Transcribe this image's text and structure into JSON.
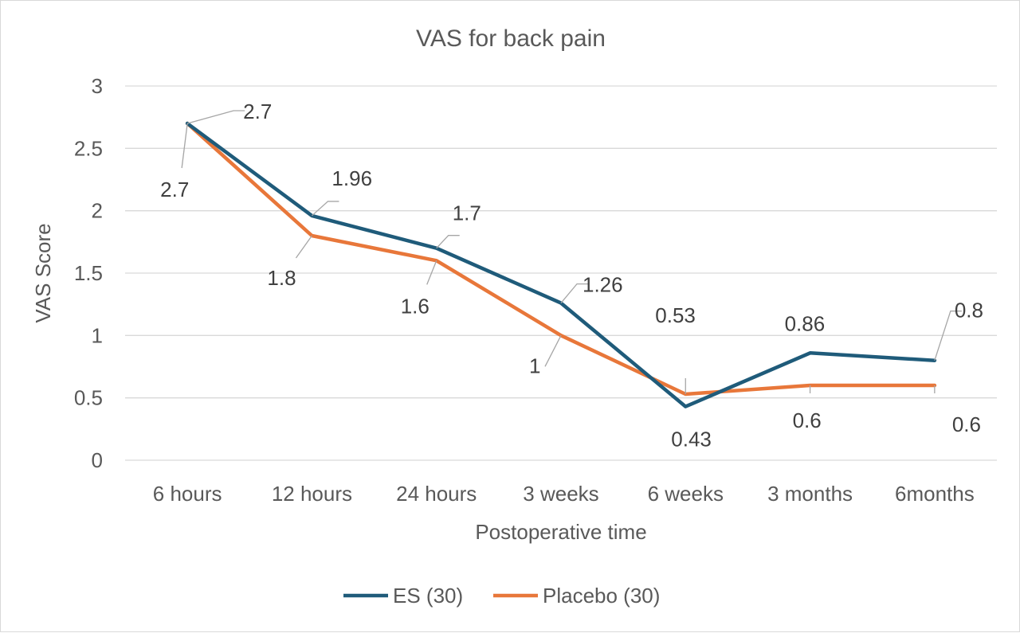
{
  "chart_data": {
    "type": "line",
    "title": "VAS for back pain",
    "xlabel": "Postoperative time",
    "ylabel": "VAS Score",
    "categories": [
      "6 hours",
      "12 hours",
      "24 hours",
      "3 weeks",
      "6 weeks",
      "3 months",
      "6months"
    ],
    "ylim": [
      0,
      3
    ],
    "yticks": [
      "0",
      "0.5",
      "1",
      "1.5",
      "2",
      "2.5",
      "3"
    ],
    "grid": true,
    "legend_position": "bottom",
    "series": [
      {
        "name": "ES (30)",
        "color": "#1f5b7a",
        "values": [
          2.7,
          1.96,
          1.7,
          1.26,
          0.43,
          0.86,
          0.8
        ],
        "labels": [
          "2.7",
          "1.96",
          "1.7",
          "1.26",
          "0.43",
          "0.86",
          "0.8"
        ]
      },
      {
        "name": "Placebo (30)",
        "color": "#e8773a",
        "values": [
          2.7,
          1.8,
          1.6,
          1,
          0.53,
          0.6,
          0.6
        ],
        "labels": [
          "2.7",
          "1.8",
          "1.6",
          "1",
          "0.53",
          "0.6",
          "0.6"
        ]
      }
    ]
  }
}
